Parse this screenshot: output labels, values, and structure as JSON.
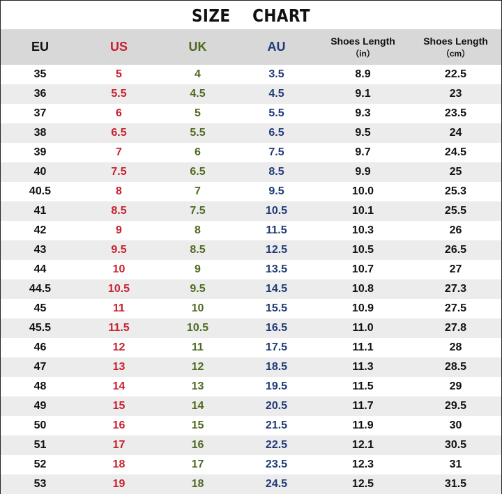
{
  "title": "SIZE    CHART",
  "colors": {
    "eu": "#111111",
    "us": "#c8202e",
    "uk": "#4c6a1f",
    "au": "#1f3a78",
    "header_bg": "#d8d8d8",
    "stripe_bg": "#ececec"
  },
  "headers": {
    "eu": "EU",
    "us": "US",
    "uk": "UK",
    "au": "AU",
    "length_in": {
      "label": "Shoes Length",
      "unit": "（in）"
    },
    "length_cm": {
      "label": "Shoes Length",
      "unit": "（cm）"
    }
  },
  "rows": [
    [
      "35",
      "5",
      "4",
      "3.5",
      "8.9",
      "22.5"
    ],
    [
      "36",
      "5.5",
      "4.5",
      "4.5",
      "9.1",
      "23"
    ],
    [
      "37",
      "6",
      "5",
      "5.5",
      "9.3",
      "23.5"
    ],
    [
      "38",
      "6.5",
      "5.5",
      "6.5",
      "9.5",
      "24"
    ],
    [
      "39",
      "7",
      "6",
      "7.5",
      "9.7",
      "24.5"
    ],
    [
      "40",
      "7.5",
      "6.5",
      "8.5",
      "9.9",
      "25"
    ],
    [
      "40.5",
      "8",
      "7",
      "9.5",
      "10.0",
      "25.3"
    ],
    [
      "41",
      "8.5",
      "7.5",
      "10.5",
      "10.1",
      "25.5"
    ],
    [
      "42",
      "9",
      "8",
      "11.5",
      "10.3",
      "26"
    ],
    [
      "43",
      "9.5",
      "8.5",
      "12.5",
      "10.5",
      "26.5"
    ],
    [
      "44",
      "10",
      "9",
      "13.5",
      "10.7",
      "27"
    ],
    [
      "44.5",
      "10.5",
      "9.5",
      "14.5",
      "10.8",
      "27.3"
    ],
    [
      "45",
      "11",
      "10",
      "15.5",
      "10.9",
      "27.5"
    ],
    [
      "45.5",
      "11.5",
      "10.5",
      "16.5",
      "11.0",
      "27.8"
    ],
    [
      "46",
      "12",
      "11",
      "17.5",
      "11.1",
      "28"
    ],
    [
      "47",
      "13",
      "12",
      "18.5",
      "11.3",
      "28.5"
    ],
    [
      "48",
      "14",
      "13",
      "19.5",
      "11.5",
      "29"
    ],
    [
      "49",
      "15",
      "14",
      "20.5",
      "11.7",
      "29.5"
    ],
    [
      "50",
      "16",
      "15",
      "21.5",
      "11.9",
      "30"
    ],
    [
      "51",
      "17",
      "16",
      "22.5",
      "12.1",
      "30.5"
    ],
    [
      "52",
      "18",
      "17",
      "23.5",
      "12.3",
      "31"
    ],
    [
      "53",
      "19",
      "18",
      "24.5",
      "12.5",
      "31.5"
    ]
  ]
}
